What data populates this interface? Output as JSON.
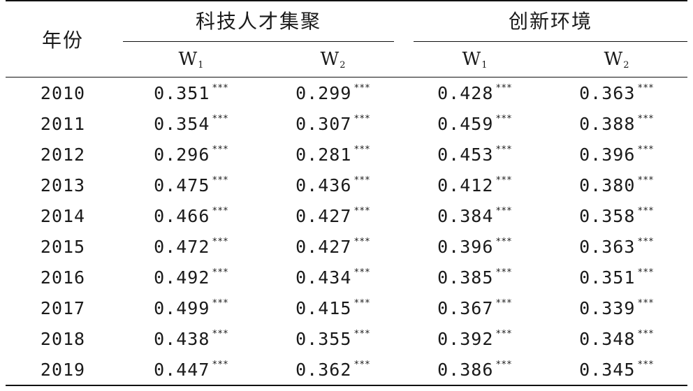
{
  "table": {
    "year_header": "年份",
    "group_1": "科技人才集聚",
    "group_2": "创新环境",
    "sub_headers": [
      {
        "main": "W",
        "sub": "1"
      },
      {
        "main": "W",
        "sub": "2"
      },
      {
        "main": "W",
        "sub": "1"
      },
      {
        "main": "W",
        "sub": "2"
      }
    ],
    "significance": "***",
    "rows": [
      {
        "year": "2010",
        "values": [
          "0.351",
          "0.299",
          "0.428",
          "0.363"
        ]
      },
      {
        "year": "2011",
        "values": [
          "0.354",
          "0.307",
          "0.459",
          "0.388"
        ]
      },
      {
        "year": "2012",
        "values": [
          "0.296",
          "0.281",
          "0.453",
          "0.396"
        ]
      },
      {
        "year": "2013",
        "values": [
          "0.475",
          "0.436",
          "0.412",
          "0.380"
        ]
      },
      {
        "year": "2014",
        "values": [
          "0.466",
          "0.427",
          "0.384",
          "0.358"
        ]
      },
      {
        "year": "2015",
        "values": [
          "0.472",
          "0.427",
          "0.396",
          "0.363"
        ]
      },
      {
        "year": "2016",
        "values": [
          "0.492",
          "0.434",
          "0.385",
          "0.351"
        ]
      },
      {
        "year": "2017",
        "values": [
          "0.499",
          "0.415",
          "0.367",
          "0.339"
        ]
      },
      {
        "year": "2018",
        "values": [
          "0.438",
          "0.355",
          "0.392",
          "0.348"
        ]
      },
      {
        "year": "2019",
        "values": [
          "0.447",
          "0.362",
          "0.386",
          "0.345"
        ]
      }
    ]
  }
}
